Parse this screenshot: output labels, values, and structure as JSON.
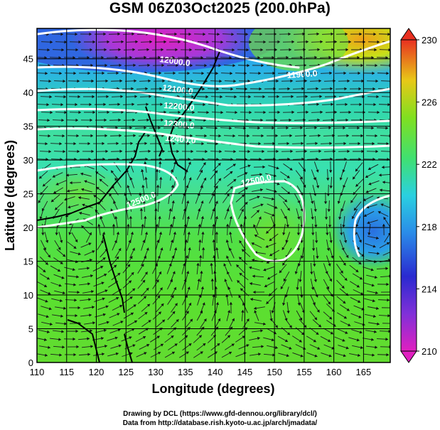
{
  "title": "GSM 06Z03Oct2025 (200.0hPa)",
  "axes": {
    "x_label": "Longitude (degrees)",
    "y_label": "Latitude  (degrees)",
    "x_ticks": [
      "110",
      "115",
      "120",
      "125",
      "130",
      "135",
      "140",
      "145",
      "150",
      "155",
      "160",
      "165"
    ],
    "y_ticks": [
      "0",
      "5",
      "10",
      "15",
      "20",
      "25",
      "30",
      "35",
      "40",
      "45"
    ]
  },
  "colorbar": {
    "labels": [
      "210",
      "214",
      "218",
      "222",
      "226",
      "230"
    ],
    "colors": [
      "#e020c0",
      "#2a2ad0",
      "#2aa8e8",
      "#30d8a8",
      "#58e020",
      "#c8e018",
      "#f0a018",
      "#e83020"
    ]
  },
  "contour_labels": [
    "12000.0",
    "11900.0",
    "12100.0",
    "12200.0",
    "12300.0",
    "12400.0",
    "12500.0",
    "12500.0"
  ],
  "credits": {
    "line1": "Drawing by DCL (https://www.gfd-dennou.org/library/dcl/)",
    "line2": "Data from http://database.rish.kyoto-u.ac.jp/arch/jmadata/"
  }
}
